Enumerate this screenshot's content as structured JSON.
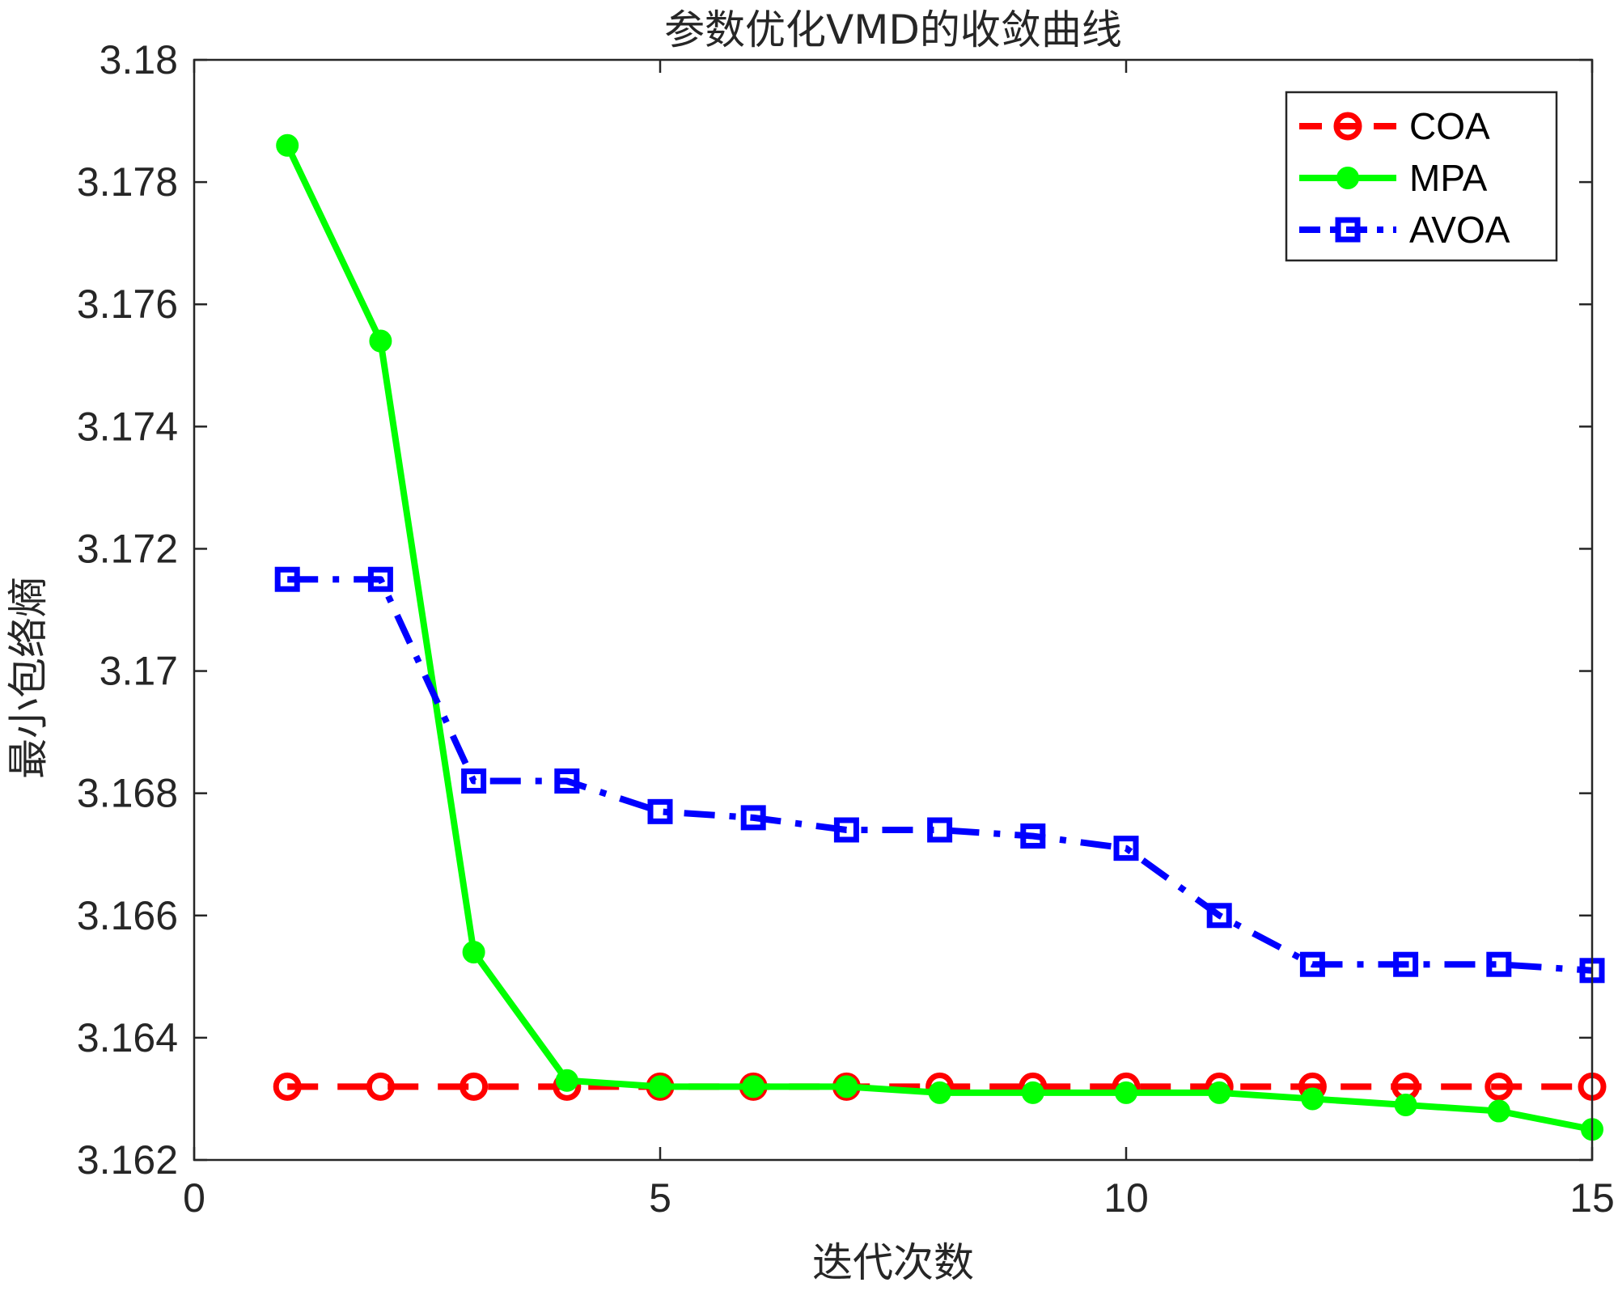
{
  "chart_data": {
    "type": "line",
    "title": "参数优化VMD的收敛曲线",
    "xlabel": "迭代次数",
    "ylabel": "最小包络熵",
    "xlim": [
      0,
      15
    ],
    "ylim": [
      3.162,
      3.18
    ],
    "x_ticks": [
      0,
      5,
      10,
      15
    ],
    "x_tick_labels": [
      "0",
      "5",
      "10",
      "15"
    ],
    "y_ticks": [
      3.162,
      3.164,
      3.166,
      3.168,
      3.17,
      3.172,
      3.174,
      3.176,
      3.178,
      3.18
    ],
    "y_tick_labels": [
      "3.162",
      "3.164",
      "3.166",
      "3.168",
      "3.17",
      "3.172",
      "3.174",
      "3.176",
      "3.178",
      "3.18"
    ],
    "grid": false,
    "legend_position": "top-right",
    "x": [
      1,
      2,
      3,
      4,
      5,
      6,
      7,
      8,
      9,
      10,
      11,
      12,
      13,
      14,
      15
    ],
    "series": [
      {
        "name": "COA",
        "color": "#ff0000",
        "line_style": "dashed",
        "marker": "circle",
        "values": [
          3.1632,
          3.1632,
          3.1632,
          3.1632,
          3.1632,
          3.1632,
          3.1632,
          3.1632,
          3.1632,
          3.1632,
          3.1632,
          3.1632,
          3.1632,
          3.1632,
          3.1632
        ]
      },
      {
        "name": "MPA",
        "color": "#00ff00",
        "line_style": "solid",
        "marker": "filled-circle",
        "values": [
          3.1786,
          3.1754,
          3.1654,
          3.1633,
          3.1632,
          3.1632,
          3.1632,
          3.1631,
          3.1631,
          3.1631,
          3.1631,
          3.163,
          3.1629,
          3.1628,
          3.1625
        ]
      },
      {
        "name": "AVOA",
        "color": "#0000ff",
        "line_style": "dashdot",
        "marker": "square",
        "values": [
          3.1715,
          3.1715,
          3.1682,
          3.1682,
          3.1677,
          3.1676,
          3.1674,
          3.1674,
          3.1673,
          3.1671,
          3.166,
          3.1652,
          3.1652,
          3.1652,
          3.1651
        ]
      }
    ]
  }
}
